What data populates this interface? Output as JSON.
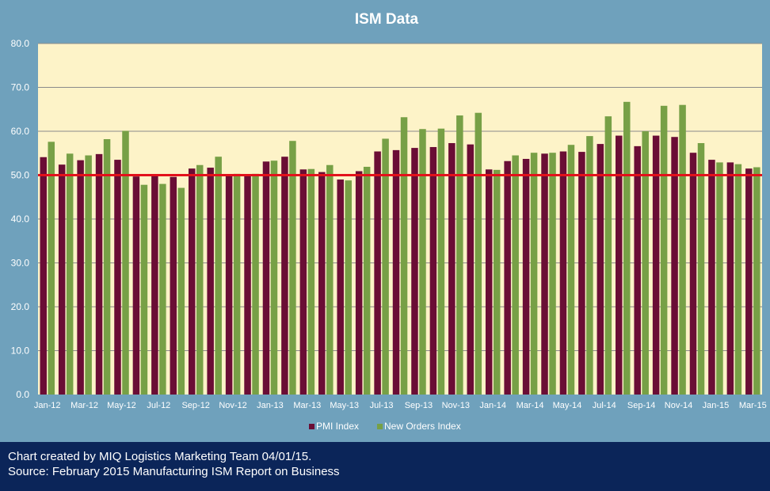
{
  "colors": {
    "background": "#6fa1bc",
    "plot_area": "#fdf3c8",
    "pmi": "#6a0d35",
    "new_orders": "#77a046",
    "reference_line": "#e3111b",
    "footer_bg": "#0b2559",
    "text": "#ffffff"
  },
  "chart_data": {
    "type": "bar",
    "title": "ISM Data",
    "xlabel": "",
    "ylabel": "",
    "ylim": [
      0,
      80
    ],
    "yticks": [
      "0.0",
      "10.0",
      "20.0",
      "30.0",
      "40.0",
      "50.0",
      "60.0",
      "70.0",
      "80.0"
    ],
    "grid": true,
    "legend_position": "bottom",
    "reference_line": 50,
    "categories": [
      "Jan-12",
      "Feb-12",
      "Mar-12",
      "Apr-12",
      "May-12",
      "Jun-12",
      "Jul-12",
      "Aug-12",
      "Sep-12",
      "Oct-12",
      "Nov-12",
      "Dec-12",
      "Jan-13",
      "Feb-13",
      "Mar-13",
      "Apr-13",
      "May-13",
      "Jun-13",
      "Jul-13",
      "Aug-13",
      "Sep-13",
      "Oct-13",
      "Nov-13",
      "Dec-13",
      "Jan-14",
      "Feb-14",
      "Mar-14",
      "Apr-14",
      "May-14",
      "Jun-14",
      "Jul-14",
      "Aug-14",
      "Sep-14",
      "Oct-14",
      "Nov-14",
      "Dec-14",
      "Jan-15",
      "Feb-15",
      "Mar-15"
    ],
    "tick_labels": [
      "Jan-12",
      "Mar-12",
      "May-12",
      "Jul-12",
      "Sep-12",
      "Nov-12",
      "Jan-13",
      "Mar-13",
      "May-13",
      "Jul-13",
      "Sep-13",
      "Nov-13",
      "Jan-14",
      "Mar-14",
      "May-14",
      "Jul-14",
      "Sep-14",
      "Nov-14",
      "Jan-15",
      "Mar-15"
    ],
    "series": [
      {
        "name": "PMI Index",
        "values": [
          54.1,
          52.4,
          53.4,
          54.8,
          53.5,
          49.7,
          49.8,
          49.6,
          51.5,
          51.7,
          49.9,
          50.2,
          53.1,
          54.2,
          51.3,
          50.7,
          49.0,
          50.9,
          55.4,
          55.7,
          56.2,
          56.4,
          57.3,
          57.0,
          51.3,
          53.2,
          53.7,
          54.9,
          55.4,
          55.3,
          57.1,
          59.0,
          56.6,
          59.0,
          58.7,
          55.1,
          53.5,
          52.9,
          51.5
        ]
      },
      {
        "name": "New Orders Index",
        "values": [
          57.6,
          54.9,
          54.5,
          58.2,
          60.1,
          47.8,
          48.0,
          47.1,
          52.3,
          54.2,
          50.3,
          50.3,
          53.3,
          57.8,
          51.4,
          52.3,
          48.8,
          51.9,
          58.3,
          63.2,
          60.5,
          60.6,
          63.6,
          64.2,
          51.2,
          54.5,
          55.1,
          55.1,
          56.9,
          58.9,
          63.4,
          66.7,
          60.0,
          65.8,
          66.0,
          57.3,
          52.9,
          52.5,
          51.8
        ]
      }
    ]
  },
  "footer": {
    "line1": "Chart created by MIQ Logistics Marketing Team 04/01/15.",
    "line2": "Source: February 2015 Manufacturing ISM Report on Business"
  }
}
